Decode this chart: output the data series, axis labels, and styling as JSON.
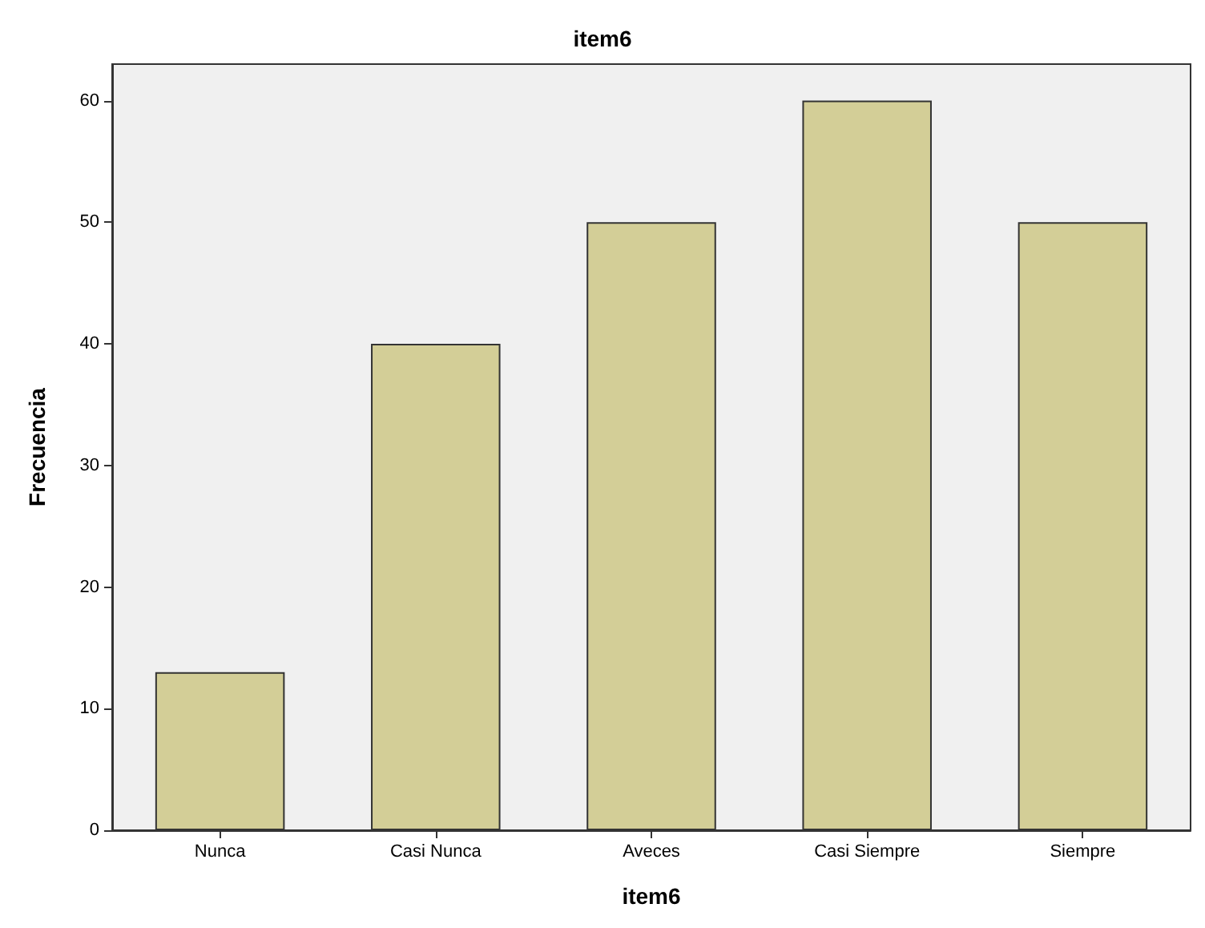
{
  "chart_data": {
    "type": "bar",
    "title": "item6",
    "xlabel": "item6",
    "ylabel": "Frecuencia",
    "categories": [
      "Nunca",
      "Casi Nunca",
      "Aveces",
      "Casi Siempre",
      "Siempre"
    ],
    "values": [
      13,
      40,
      50,
      60,
      50
    ],
    "color": "#d3ce97",
    "ylim": [
      0,
      63
    ],
    "yticks": [
      0,
      10,
      20,
      30,
      40,
      50,
      60
    ],
    "grid": false
  }
}
